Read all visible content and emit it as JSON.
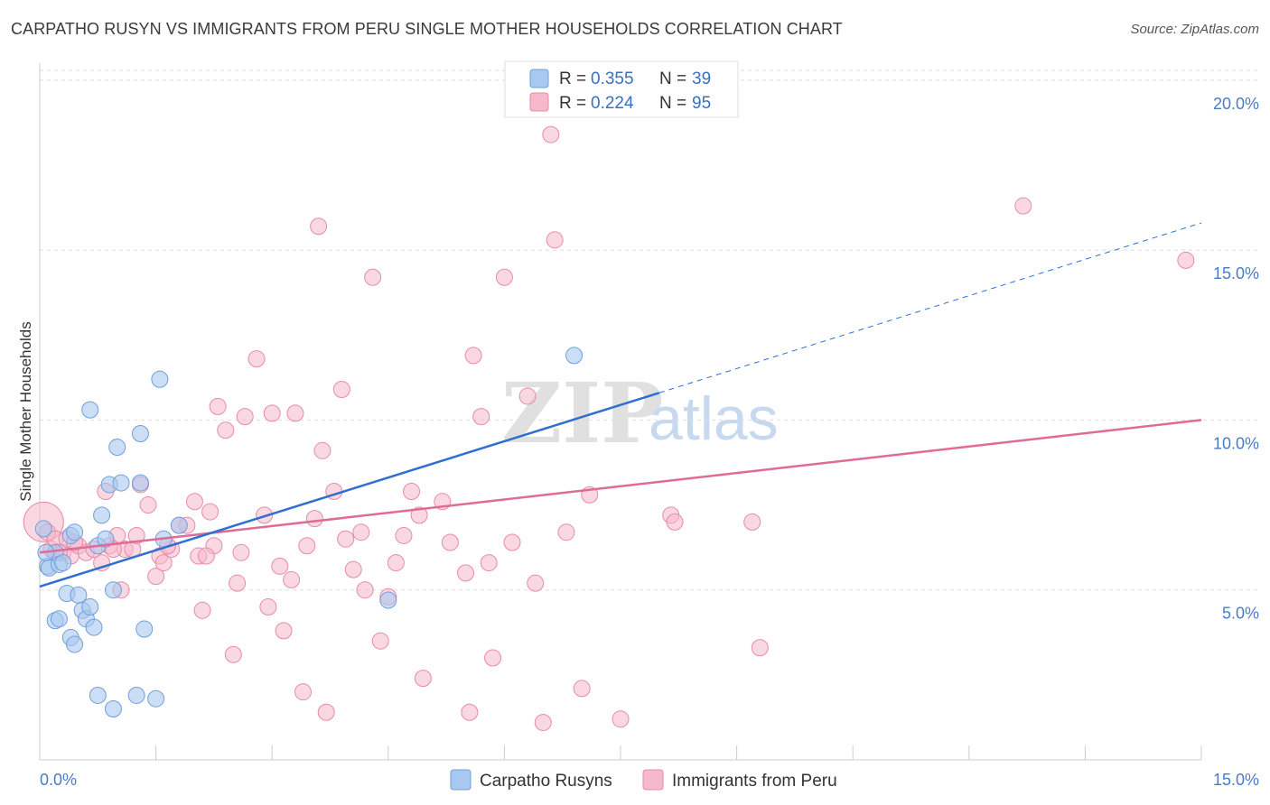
{
  "title": "CARPATHO RUSYN VS IMMIGRANTS FROM PERU SINGLE MOTHER HOUSEHOLDS CORRELATION CHART",
  "source": "Source: ZipAtlas.com",
  "watermark": {
    "zip": "ZIP",
    "atlas": "atlas"
  },
  "legend": {
    "rows": [
      {
        "r_label": "R = ",
        "r_value": "0.355",
        "n_label": "N = ",
        "n_value": "39",
        "color": "#a8c8f0"
      },
      {
        "r_label": "R = ",
        "r_value": "0.224",
        "n_label": "N = ",
        "n_value": "95",
        "color": "#f6b8cb"
      }
    ]
  },
  "bottom_legend": [
    "Carpatho Rusyns",
    "Immigrants from Peru"
  ],
  "colors": {
    "blue_fill": "#a8c8f0",
    "blue_stroke": "#6f9fd8",
    "blue_line": "#2e6fd0",
    "pink_fill": "#f6b8cb",
    "pink_stroke": "#e88aa8",
    "pink_line": "#e06a98"
  },
  "chart_data": {
    "type": "scatter",
    "title": "CARPATHO RUSYN VS IMMIGRANTS FROM PERU SINGLE MOTHER HOUSEHOLDS CORRELATION CHART",
    "xlabel": "",
    "ylabel": "Single Mother Households",
    "xlim": [
      0,
      15
    ],
    "ylim": [
      0,
      20.5
    ],
    "x_tick_labels": [
      "0.0%",
      "15.0%"
    ],
    "y_ticks": [
      5,
      10,
      15,
      20
    ],
    "y_tick_labels": [
      "5.0%",
      "10.0%",
      "15.0%",
      "20.0%"
    ],
    "grid": true,
    "series": [
      {
        "name": "Carpatho Rusyns",
        "r": 0.355,
        "n": 39,
        "trend": {
          "x0": 0,
          "y0": 5.1,
          "x1": 8.0,
          "y1": 10.8,
          "dashed_to_x": 15,
          "dashed_to_y": 15.8
        },
        "points": [
          [
            0.05,
            6.8
          ],
          [
            0.1,
            5.7
          ],
          [
            0.12,
            5.65
          ],
          [
            0.2,
            6.1
          ],
          [
            0.25,
            5.75
          ],
          [
            0.3,
            5.8
          ],
          [
            0.35,
            4.9
          ],
          [
            0.4,
            6.6
          ],
          [
            0.45,
            6.7
          ],
          [
            0.5,
            4.85
          ],
          [
            0.55,
            4.4
          ],
          [
            0.6,
            4.15
          ],
          [
            0.65,
            4.5
          ],
          [
            0.7,
            3.9
          ],
          [
            0.75,
            6.3
          ],
          [
            0.8,
            7.2
          ],
          [
            0.85,
            6.5
          ],
          [
            0.9,
            8.1
          ],
          [
            0.95,
            5.0
          ],
          [
            1.0,
            9.2
          ],
          [
            1.05,
            8.15
          ],
          [
            1.3,
            8.15
          ],
          [
            1.35,
            3.85
          ],
          [
            1.55,
            11.2
          ],
          [
            1.6,
            6.5
          ],
          [
            1.8,
            6.9
          ],
          [
            0.2,
            4.1
          ],
          [
            0.25,
            4.15
          ],
          [
            0.4,
            3.6
          ],
          [
            0.45,
            3.4
          ],
          [
            0.65,
            10.3
          ],
          [
            1.3,
            9.6
          ],
          [
            0.75,
            1.9
          ],
          [
            0.95,
            1.5
          ],
          [
            1.25,
            1.9
          ],
          [
            1.5,
            1.8
          ],
          [
            4.5,
            4.7
          ],
          [
            6.9,
            11.9
          ],
          [
            0.08,
            6.1
          ]
        ]
      },
      {
        "name": "Immigrants from Peru",
        "r": 0.224,
        "n": 95,
        "trend": {
          "x0": 0,
          "y0": 6.1,
          "x1": 15,
          "y1": 10.0
        },
        "points": [
          [
            0.05,
            7.0
          ],
          [
            0.1,
            6.7
          ],
          [
            0.15,
            6.2
          ],
          [
            0.2,
            6.5
          ],
          [
            0.3,
            6.1
          ],
          [
            0.35,
            6.5
          ],
          [
            0.4,
            6.0
          ],
          [
            0.5,
            6.3
          ],
          [
            0.6,
            6.1
          ],
          [
            0.7,
            6.2
          ],
          [
            0.8,
            5.8
          ],
          [
            0.85,
            7.9
          ],
          [
            0.9,
            6.3
          ],
          [
            1.0,
            6.6
          ],
          [
            1.05,
            5.0
          ],
          [
            1.1,
            6.2
          ],
          [
            1.2,
            6.2
          ],
          [
            1.25,
            6.6
          ],
          [
            1.3,
            8.1
          ],
          [
            1.4,
            7.5
          ],
          [
            1.5,
            5.4
          ],
          [
            1.55,
            6.0
          ],
          [
            1.6,
            5.8
          ],
          [
            1.7,
            6.2
          ],
          [
            1.8,
            6.9
          ],
          [
            1.9,
            6.9
          ],
          [
            2.0,
            7.6
          ],
          [
            2.05,
            6.0
          ],
          [
            2.1,
            4.4
          ],
          [
            2.2,
            7.3
          ],
          [
            2.25,
            6.3
          ],
          [
            2.3,
            10.4
          ],
          [
            2.4,
            9.7
          ],
          [
            2.5,
            3.1
          ],
          [
            2.55,
            5.2
          ],
          [
            2.6,
            6.1
          ],
          [
            2.65,
            10.1
          ],
          [
            2.8,
            11.8
          ],
          [
            2.9,
            7.2
          ],
          [
            2.95,
            4.5
          ],
          [
            3.0,
            10.2
          ],
          [
            3.1,
            5.7
          ],
          [
            3.15,
            3.8
          ],
          [
            3.25,
            5.3
          ],
          [
            3.3,
            10.2
          ],
          [
            3.4,
            2.0
          ],
          [
            3.45,
            6.3
          ],
          [
            3.55,
            7.1
          ],
          [
            3.6,
            15.7
          ],
          [
            3.65,
            9.1
          ],
          [
            3.7,
            1.4
          ],
          [
            3.8,
            7.9
          ],
          [
            3.9,
            10.9
          ],
          [
            3.95,
            6.5
          ],
          [
            4.05,
            5.6
          ],
          [
            4.15,
            6.7
          ],
          [
            4.2,
            5.0
          ],
          [
            4.3,
            14.2
          ],
          [
            4.4,
            3.5
          ],
          [
            4.5,
            4.8
          ],
          [
            4.6,
            5.8
          ],
          [
            4.7,
            6.6
          ],
          [
            4.8,
            7.9
          ],
          [
            4.9,
            7.2
          ],
          [
            4.95,
            2.4
          ],
          [
            5.2,
            7.6
          ],
          [
            5.3,
            6.4
          ],
          [
            5.5,
            5.5
          ],
          [
            5.55,
            1.4
          ],
          [
            5.6,
            11.9
          ],
          [
            5.7,
            10.1
          ],
          [
            5.8,
            5.8
          ],
          [
            5.85,
            3.0
          ],
          [
            6.0,
            14.2
          ],
          [
            6.1,
            6.4
          ],
          [
            6.3,
            10.7
          ],
          [
            6.4,
            5.2
          ],
          [
            6.5,
            1.1
          ],
          [
            6.6,
            18.4
          ],
          [
            6.65,
            15.3
          ],
          [
            6.8,
            6.7
          ],
          [
            7.0,
            2.1
          ],
          [
            7.1,
            7.8
          ],
          [
            7.5,
            1.2
          ],
          [
            8.15,
            7.2
          ],
          [
            8.2,
            7.0
          ],
          [
            9.2,
            7.0
          ],
          [
            9.3,
            3.3
          ],
          [
            12.7,
            16.3
          ],
          [
            14.8,
            14.7
          ],
          [
            0.25,
            6.1
          ],
          [
            0.45,
            6.4
          ],
          [
            0.95,
            6.2
          ],
          [
            1.65,
            6.3
          ],
          [
            2.15,
            6.0
          ]
        ]
      }
    ]
  }
}
